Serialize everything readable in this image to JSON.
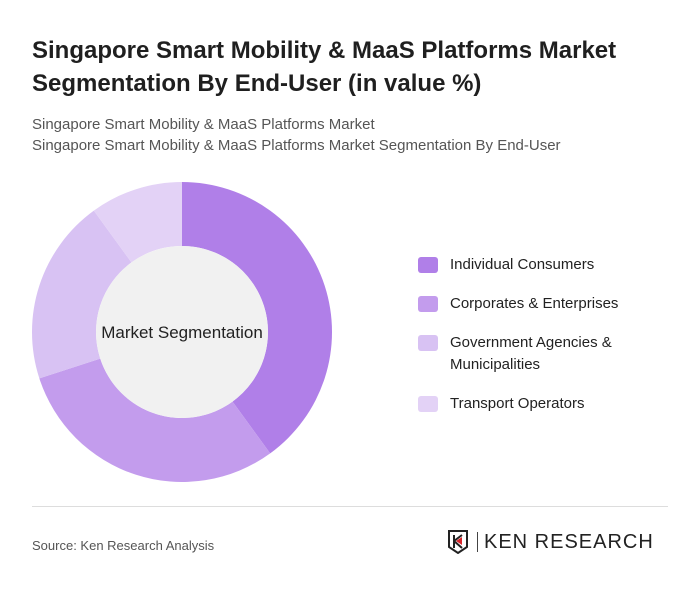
{
  "title": "Singapore Smart Mobility & MaaS Platforms Market Segmentation By End-User (in value %)",
  "subtitle1": "Singapore Smart Mobility & MaaS Platforms Market",
  "subtitle2": "Singapore Smart Mobility & MaaS Platforms Market Segmentation By End-User",
  "source": "Source: Ken Research Analysis",
  "logo": "KEN RESEARCH",
  "chart_data": {
    "type": "pie",
    "variant": "donut",
    "center_label": "Market Segmentation",
    "categories": [
      "Individual Consumers",
      "Corporates & Enterprises",
      "Government Agencies & Municipalities",
      "Transport Operators"
    ],
    "values": [
      40,
      30,
      20,
      10
    ],
    "colors": [
      "#b07fe8",
      "#c39ced",
      "#d8c2f3",
      "#e3d2f6"
    ],
    "legend_position": "right"
  }
}
